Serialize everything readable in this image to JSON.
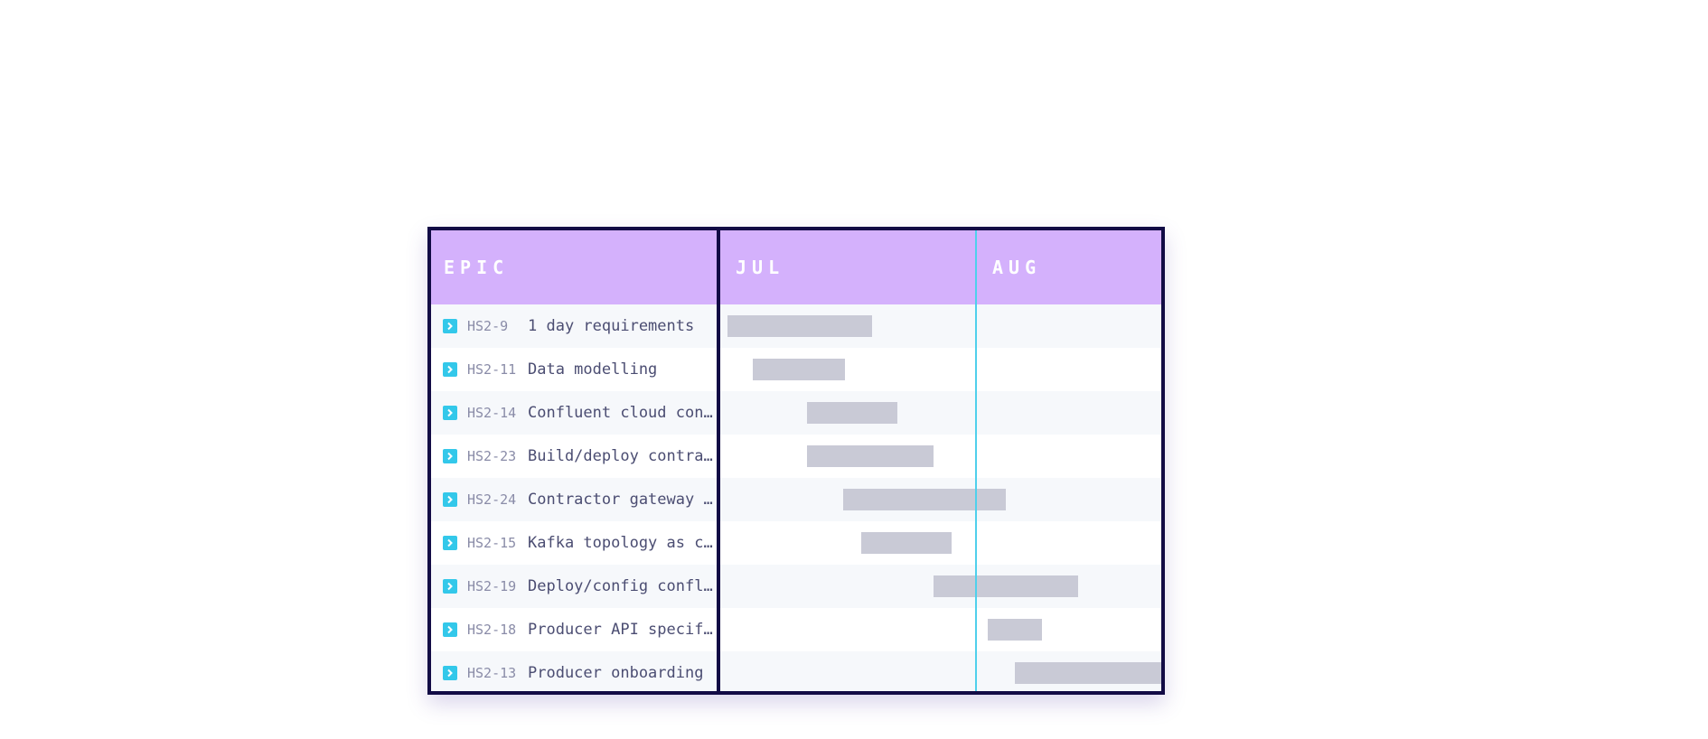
{
  "header": {
    "epic_label": "EPIC",
    "months": [
      "JUL",
      "AUG"
    ]
  },
  "colors": {
    "header_bg": "#d4b1fc",
    "border": "#120b45",
    "today_line": "#4fd0ec",
    "epic_icon": "#33c8ea",
    "bar": "#c9cad6"
  },
  "epics": [
    {
      "key": "HS2-9",
      "title": "1 day requirements",
      "icon": "epic-icon"
    },
    {
      "key": "HS2-11",
      "title": "Data modelling",
      "icon": "epic-icon"
    },
    {
      "key": "HS2-14",
      "title": "Confluent cloud configuration",
      "icon": "epic-icon"
    },
    {
      "key": "HS2-23",
      "title": "Build/deploy contractor gateway",
      "icon": "epic-icon"
    },
    {
      "key": "HS2-24",
      "title": "Contractor gateway onboarding",
      "icon": "epic-icon"
    },
    {
      "key": "HS2-15",
      "title": "Kafka topology as code",
      "icon": "epic-icon"
    },
    {
      "key": "HS2-19",
      "title": "Deploy/config confluent",
      "icon": "epic-icon"
    },
    {
      "key": "HS2-18",
      "title": "Producer API specification",
      "icon": "epic-icon"
    },
    {
      "key": "HS2-13",
      "title": "Producer onboarding",
      "icon": "epic-icon"
    }
  ]
}
